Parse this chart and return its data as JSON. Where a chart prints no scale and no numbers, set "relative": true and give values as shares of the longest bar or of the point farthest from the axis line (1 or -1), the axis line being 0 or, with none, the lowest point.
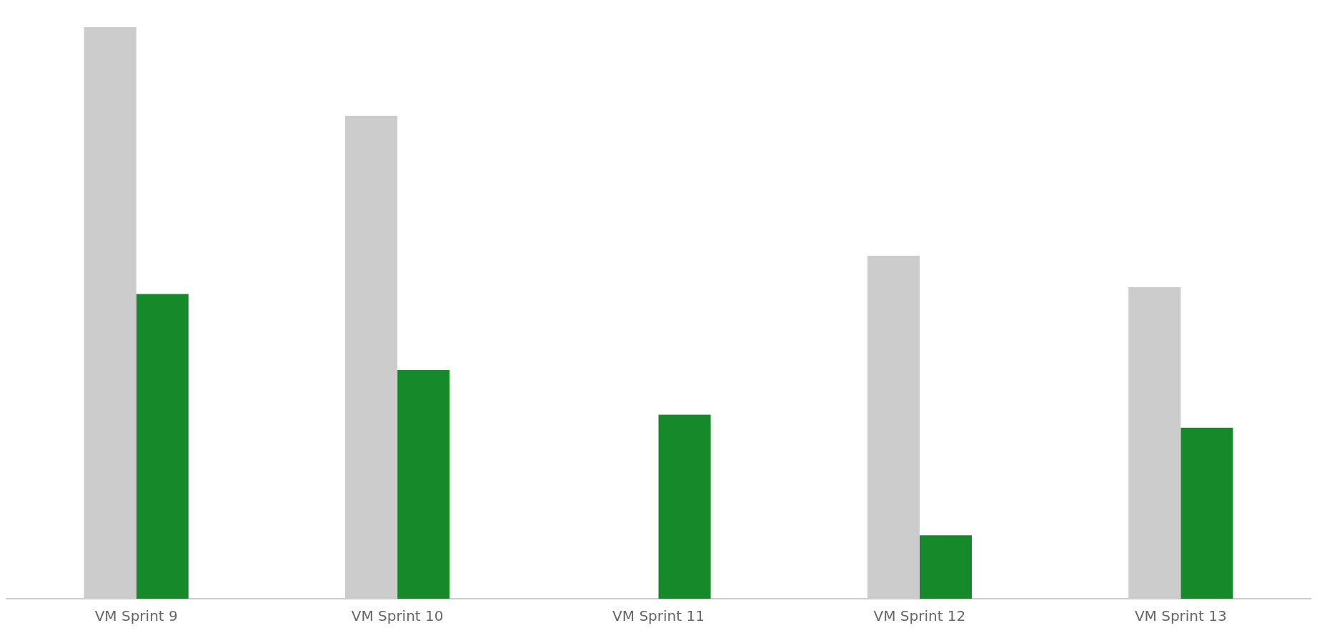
{
  "chart_data": {
    "type": "bar",
    "relative": true,
    "categories": [
      "VM Sprint 9",
      "VM Sprint 10",
      "VM Sprint 11",
      "VM Sprint 12",
      "VM Sprint 13"
    ],
    "series": [
      {
        "color": "#cccccc",
        "values": [
          1,
          0.845,
          null,
          0.6,
          0.545
        ]
      },
      {
        "color": "#168a2b",
        "values": [
          0.533,
          0.4,
          0.322,
          0.111,
          0.299
        ]
      }
    ],
    "grid": false,
    "legend": false
  }
}
